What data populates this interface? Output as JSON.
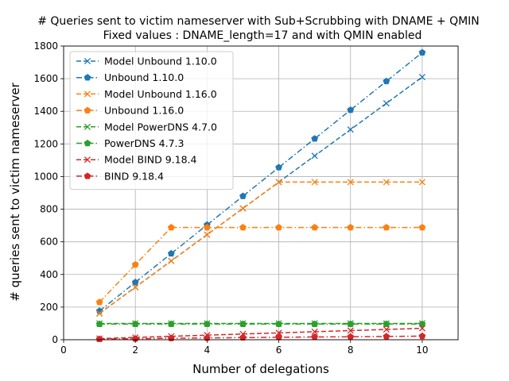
{
  "chart_data": {
    "type": "line",
    "title": "# Queries sent to victim nameserver with Sub+Scrubbing with DNAME + QMIN",
    "subtitle": "Fixed values : DNAME_length=17 and with QMIN enabled",
    "xlabel": "Number of delegations",
    "ylabel": "# queries sent to victim nameserver",
    "xlim": [
      0,
      11
    ],
    "ylim": [
      0,
      1800
    ],
    "xticks": [
      0,
      2,
      4,
      6,
      8,
      10
    ],
    "yticks": [
      0,
      200,
      400,
      600,
      800,
      1000,
      1200,
      1400,
      1600,
      1800
    ],
    "grid": true,
    "legend_position": "top-left",
    "x": [
      1,
      2,
      3,
      4,
      5,
      6,
      7,
      8,
      9,
      10
    ],
    "series": [
      {
        "name": "Model Unbound 1.10.0",
        "color": "#1f77b4",
        "marker": "x",
        "linestyle": "dashed",
        "values": [
          161,
          322,
          483,
          644,
          805,
          966,
          1127,
          1288,
          1449,
          1610
        ]
      },
      {
        "name": "Unbound 1.10.0",
        "color": "#1f77b4",
        "marker": "pentagon",
        "linestyle": "dashdot",
        "values": [
          176,
          352,
          528,
          704,
          880,
          1056,
          1232,
          1408,
          1584,
          1760
        ]
      },
      {
        "name": "Model Unbound 1.16.0",
        "color": "#ff7f0e",
        "marker": "x",
        "linestyle": "dashed",
        "values": [
          161,
          322,
          483,
          644,
          805,
          966,
          966,
          966,
          966,
          966
        ]
      },
      {
        "name": "Unbound 1.16.0",
        "color": "#ff7f0e",
        "marker": "pentagon",
        "linestyle": "dashdot",
        "values": [
          230,
          460,
          688,
          688,
          688,
          688,
          688,
          688,
          688,
          688
        ]
      },
      {
        "name": "Model PowerDNS 4.7.0",
        "color": "#2ca02c",
        "marker": "x",
        "linestyle": "dashed",
        "values": [
          100,
          100,
          100,
          100,
          100,
          100,
          100,
          100,
          100,
          100
        ]
      },
      {
        "name": "PowerDNS 4.7.3",
        "color": "#2ca02c",
        "marker": "pentagon",
        "linestyle": "dashdot",
        "values": [
          96,
          96,
          96,
          96,
          96,
          96,
          96,
          96,
          96,
          96
        ]
      },
      {
        "name": "Model BIND 9.18.4",
        "color": "#d62728",
        "marker": "x",
        "linestyle": "dashed",
        "values": [
          7,
          14,
          21,
          28,
          35,
          42,
          49,
          56,
          63,
          70
        ]
      },
      {
        "name": "BIND 9.18.4",
        "color": "#d62728",
        "marker": "pentagon",
        "linestyle": "dashdot",
        "values": [
          4,
          6,
          9,
          11,
          13,
          15,
          17,
          18,
          20,
          22
        ]
      }
    ]
  }
}
